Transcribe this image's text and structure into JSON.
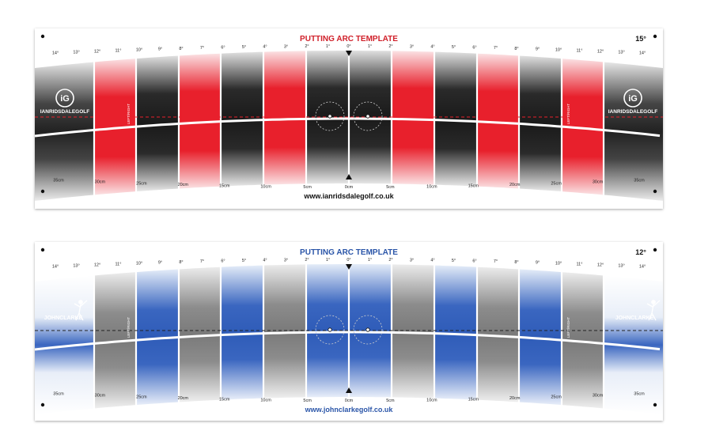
{
  "boards": [
    {
      "title": "PUTTING ARC TEMPLATE",
      "title_color": "#d0202a",
      "angle": "15°",
      "url": "www.ianridsdalegolf.co.uk",
      "url_color": "#111111",
      "brand_left_label": "IANRIDSDALEGOLF",
      "brand_right_label": "IANRIDSDALEGOLF",
      "brand_logo_letters": "iG",
      "side_text": "LEFT/RIGHT",
      "colors": {
        "accent": "#e8202c",
        "dark": "#1e1e1e",
        "light_accent": "#f9d6d9"
      },
      "pattern": [
        "gray",
        "red",
        "dark",
        "red",
        "dark",
        "red",
        "dark",
        "dark",
        "red",
        "dark",
        "red",
        "dark",
        "red",
        "gray"
      ],
      "degree_labels": [
        "14°",
        "13°",
        "12°",
        "11°",
        "10°",
        "9°",
        "8°",
        "7°",
        "6°",
        "5°",
        "4°",
        "3°",
        "2°",
        "1°",
        "0°",
        "1°",
        "2°",
        "3°",
        "4°",
        "5°",
        "6°",
        "7°",
        "8°",
        "9°",
        "10°",
        "11°",
        "12°",
        "13°",
        "14°"
      ],
      "cm_labels": [
        "35cm",
        "30cm",
        "25cm",
        "20cm",
        "15cm",
        "10cm",
        "5cm",
        "0cm",
        "5cm",
        "10cm",
        "15cm",
        "20cm",
        "25cm",
        "30cm",
        "35cm"
      ]
    },
    {
      "title": "PUTTING ARC TEMPLATE",
      "title_color": "#2a55a8",
      "angle": "12°",
      "url": "www.johnclarkegolf.co.uk",
      "url_color": "#2a55a8",
      "brand_left_label": "JOHNCLARKE",
      "brand_right_label": "JOHNCLARKE",
      "brand_logo_letters": "",
      "side_text": "LEFT/RIGHT",
      "colors": {
        "accent": "#3a66c0",
        "dark": "#8a8a8a",
        "light_accent": "#d8e3f5"
      },
      "pattern": [
        "white",
        "gray",
        "blue",
        "gray",
        "blue",
        "gray",
        "blue",
        "blue",
        "gray",
        "blue",
        "gray",
        "blue",
        "gray",
        "white"
      ],
      "degree_labels": [
        "14°",
        "13°",
        "12°",
        "11°",
        "10°",
        "9°",
        "8°",
        "7°",
        "6°",
        "5°",
        "4°",
        "3°",
        "2°",
        "1°",
        "0°",
        "1°",
        "2°",
        "3°",
        "4°",
        "5°",
        "6°",
        "7°",
        "8°",
        "9°",
        "10°",
        "11°",
        "12°",
        "13°",
        "14°"
      ],
      "cm_labels": [
        "35cm",
        "30cm",
        "25cm",
        "20cm",
        "15cm",
        "10cm",
        "5cm",
        "0cm",
        "5cm",
        "10cm",
        "15cm",
        "20cm",
        "25cm",
        "30cm",
        "35cm"
      ]
    }
  ]
}
